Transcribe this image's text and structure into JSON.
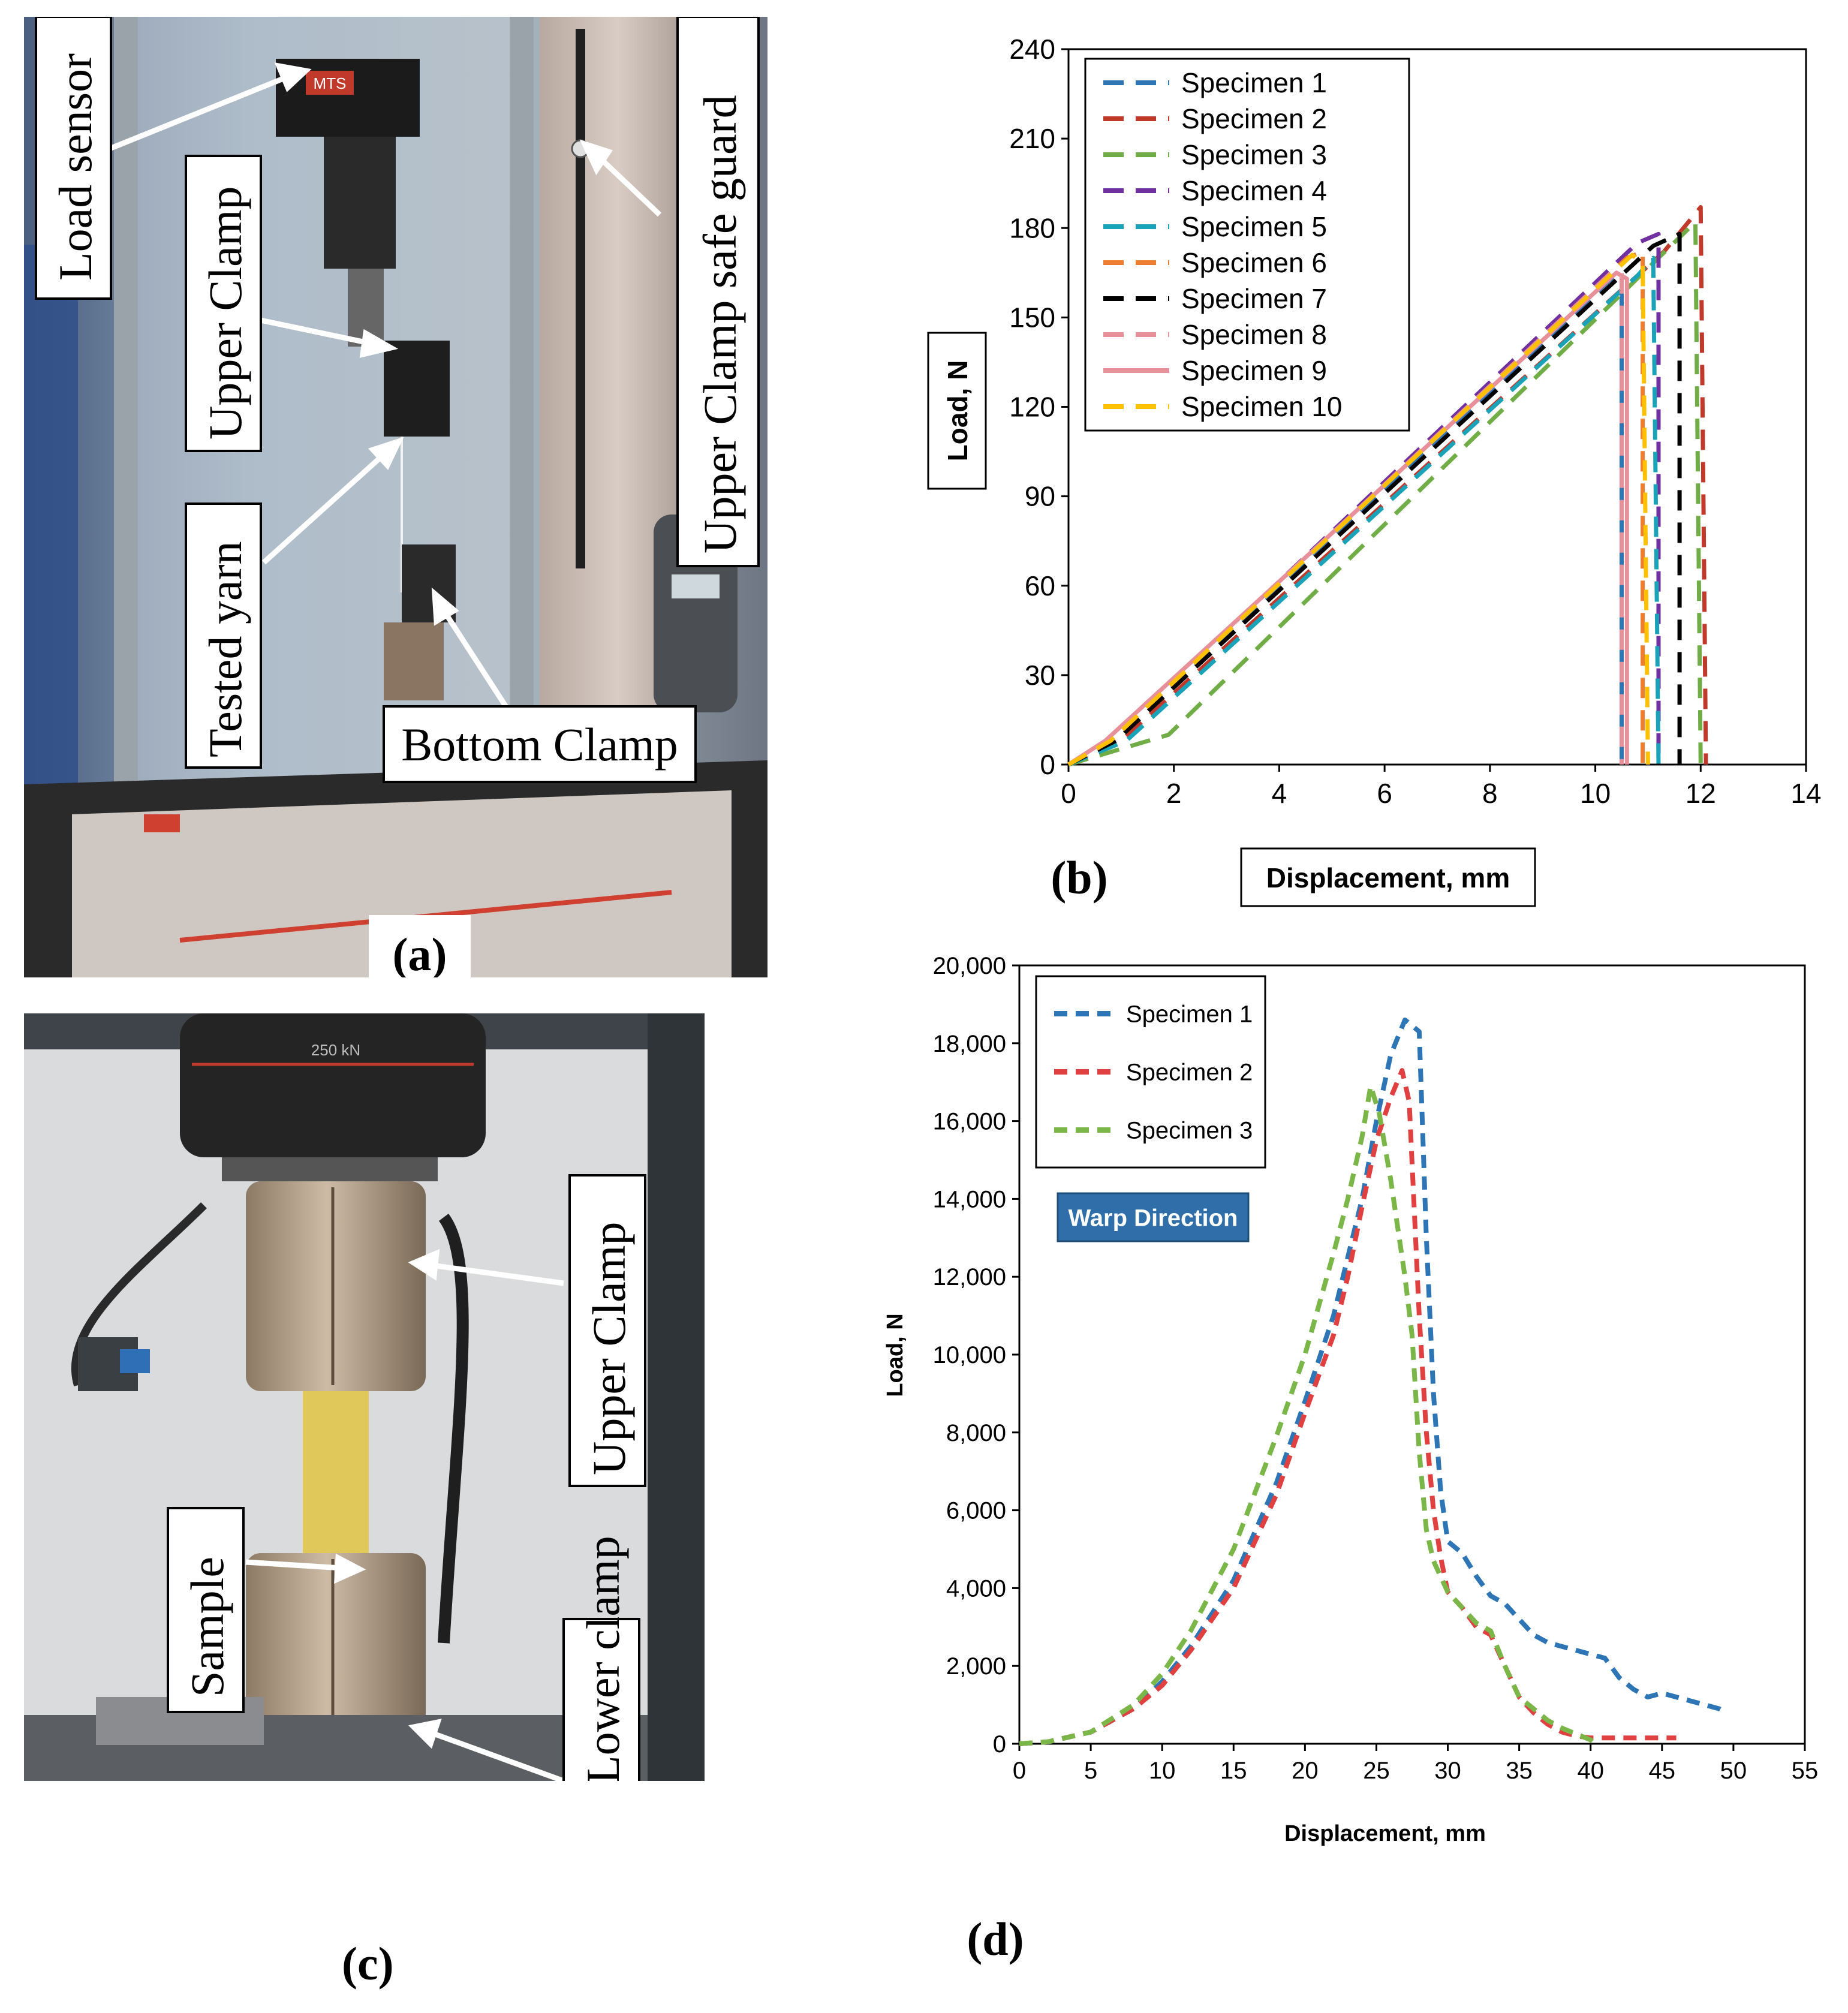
{
  "panel_a": {
    "caption": "(a)",
    "labels": {
      "load_sensor": "Load sensor",
      "upper_clamp": "Upper Clamp",
      "tested_yarn": "Tested yarn",
      "bottom_clamp": "Bottom Clamp",
      "safe_guard": "Upper Clamp safe guard"
    },
    "machine_brand": "MTS"
  },
  "panel_c": {
    "caption": "(c)",
    "labels": {
      "upper_clamp": "Upper Clamp",
      "sample": "Sample",
      "lower_clamp": "Lower clamp"
    },
    "load_cell_text": "250 kN"
  },
  "chart_data": [
    {
      "panel": "(b)",
      "type": "line",
      "xlabel": "Displacement, mm",
      "ylabel": "Load, N",
      "xlim": [
        0,
        14
      ],
      "ylim": [
        0,
        240
      ],
      "xticks": [
        "0",
        "2",
        "4",
        "6",
        "8",
        "10",
        "12",
        "14"
      ],
      "yticks": [
        "0",
        "30",
        "60",
        "90",
        "120",
        "150",
        "180",
        "210",
        "240"
      ],
      "grid": false,
      "legend_position": "top-left",
      "series": [
        {
          "name": "Specimen 1",
          "color": "#2e75b6",
          "dash": "dashed",
          "points": [
            [
              0,
              0
            ],
            [
              0.9,
              8
            ],
            [
              10.3,
              163
            ],
            [
              10.5,
              160
            ],
            [
              10.5,
              0
            ]
          ]
        },
        {
          "name": "Specimen 2",
          "color": "#c0392b",
          "dash": "dashed",
          "points": [
            [
              0,
              0
            ],
            [
              1.0,
              8
            ],
            [
              11.3,
              172
            ],
            [
              12.0,
              187
            ],
            [
              12.1,
              0
            ]
          ]
        },
        {
          "name": "Specimen 3",
          "color": "#70ad47",
          "dash": "dashed",
          "points": [
            [
              0,
              0
            ],
            [
              1.9,
              10
            ],
            [
              11.2,
              170
            ],
            [
              11.9,
              182
            ],
            [
              12.0,
              0
            ]
          ]
        },
        {
          "name": "Specimen 4",
          "color": "#7030a0",
          "dash": "dashed",
          "points": [
            [
              0,
              0
            ],
            [
              0.8,
              8
            ],
            [
              10.8,
              175
            ],
            [
              11.2,
              178
            ],
            [
              11.2,
              0
            ]
          ]
        },
        {
          "name": "Specimen 5",
          "color": "#1aa3b8",
          "dash": "dashed",
          "points": [
            [
              0,
              0
            ],
            [
              1.1,
              8
            ],
            [
              10.8,
              164
            ],
            [
              11.1,
              170
            ],
            [
              11.2,
              0
            ]
          ]
        },
        {
          "name": "Specimen 6",
          "color": "#ed7d31",
          "dash": "dashed",
          "points": [
            [
              0,
              0
            ],
            [
              0.8,
              8
            ],
            [
              10.6,
              170
            ],
            [
              10.9,
              172
            ],
            [
              10.9,
              0
            ]
          ]
        },
        {
          "name": "Specimen 7",
          "color": "#000000",
          "dash": "dashed",
          "points": [
            [
              0,
              0
            ],
            [
              0.9,
              8
            ],
            [
              11.1,
              174
            ],
            [
              11.6,
              178
            ],
            [
              11.6,
              0
            ]
          ]
        },
        {
          "name": "Specimen 8",
          "color": "#e8909a",
          "dash": "dashed",
          "points": [
            [
              0,
              0
            ],
            [
              0.8,
              8
            ],
            [
              10.3,
              165
            ],
            [
              10.5,
              165
            ],
            [
              10.5,
              0
            ]
          ]
        },
        {
          "name": "Specimen 9",
          "color": "#e8909a",
          "dash": "solid",
          "points": [
            [
              0,
              0
            ],
            [
              0.7,
              8
            ],
            [
              10.4,
              165
            ],
            [
              10.6,
              163
            ],
            [
              10.6,
              0
            ]
          ]
        },
        {
          "name": "Specimen 10",
          "color": "#ffc000",
          "dash": "dashed",
          "points": [
            [
              0,
              0
            ],
            [
              0.8,
              8
            ],
            [
              10.7,
              171
            ],
            [
              10.9,
              168
            ],
            [
              11.0,
              0
            ]
          ]
        }
      ]
    },
    {
      "panel": "(d)",
      "type": "line",
      "xlabel": "Displacement, mm",
      "ylabel": "Load, N",
      "xlim": [
        0,
        55
      ],
      "ylim": [
        0,
        20000
      ],
      "xticks": [
        "0",
        "5",
        "10",
        "15",
        "20",
        "25",
        "30",
        "35",
        "40",
        "45",
        "50",
        "55"
      ],
      "yticks": [
        "0",
        "2,000",
        "4,000",
        "6,000",
        "8,000",
        "10,000",
        "12,000",
        "14,000",
        "16,000",
        "18,000",
        "20,000"
      ],
      "grid": false,
      "legend_position": "top-left",
      "annotation": "Warp Direction",
      "series": [
        {
          "name": "Specimen 1",
          "color": "#2e75b6",
          "dash": "dashed",
          "points": [
            [
              0,
              0
            ],
            [
              2,
              50
            ],
            [
              5,
              300
            ],
            [
              8,
              900
            ],
            [
              10,
              1600
            ],
            [
              12,
              2500
            ],
            [
              15,
              4200
            ],
            [
              18,
              6700
            ],
            [
              20,
              8800
            ],
            [
              22,
              11000
            ],
            [
              24,
              14000
            ],
            [
              25,
              16000
            ],
            [
              26,
              17700
            ],
            [
              27,
              18600
            ],
            [
              28,
              18300
            ],
            [
              28.5,
              13000
            ],
            [
              29,
              9000
            ],
            [
              29.5,
              6500
            ],
            [
              30,
              5200
            ],
            [
              31,
              4900
            ],
            [
              32,
              4300
            ],
            [
              33,
              3800
            ],
            [
              34,
              3600
            ],
            [
              35,
              3200
            ],
            [
              36,
              2800
            ],
            [
              37,
              2600
            ],
            [
              38,
              2500
            ],
            [
              40,
              2300
            ],
            [
              41,
              2200
            ],
            [
              42,
              1700
            ],
            [
              43,
              1400
            ],
            [
              44,
              1200
            ],
            [
              45,
              1300
            ],
            [
              46,
              1200
            ],
            [
              47,
              1100
            ],
            [
              48,
              1000
            ],
            [
              49,
              900
            ],
            [
              49.5,
              800
            ]
          ]
        },
        {
          "name": "Specimen 2",
          "color": "#e04040",
          "dash": "dashed",
          "points": [
            [
              0,
              0
            ],
            [
              2,
              50
            ],
            [
              5,
              300
            ],
            [
              8,
              900
            ],
            [
              10,
              1500
            ],
            [
              12,
              2400
            ],
            [
              15,
              4000
            ],
            [
              18,
              6400
            ],
            [
              20,
              8500
            ],
            [
              22,
              10500
            ],
            [
              23,
              12000
            ],
            [
              24,
              13800
            ],
            [
              25,
              15500
            ],
            [
              26,
              16600
            ],
            [
              26.8,
              17300
            ],
            [
              27.3,
              16500
            ],
            [
              28,
              11000
            ],
            [
              28.5,
              8000
            ],
            [
              29,
              6000
            ],
            [
              29.5,
              4800
            ],
            [
              30,
              3900
            ],
            [
              31,
              3500
            ],
            [
              32,
              3000
            ],
            [
              33,
              2800
            ],
            [
              34,
              2000
            ],
            [
              35,
              1200
            ],
            [
              36,
              800
            ],
            [
              37,
              500
            ],
            [
              38,
              300
            ],
            [
              39,
              200
            ],
            [
              40,
              150
            ],
            [
              42,
              150
            ],
            [
              44,
              150
            ],
            [
              46,
              150
            ]
          ]
        },
        {
          "name": "Specimen 3",
          "color": "#7ab648",
          "dash": "dashed",
          "points": [
            [
              0,
              0
            ],
            [
              2,
              50
            ],
            [
              5,
              300
            ],
            [
              8,
              1000
            ],
            [
              10,
              1800
            ],
            [
              12,
              2900
            ],
            [
              15,
              5000
            ],
            [
              18,
              7900
            ],
            [
              20,
              10000
            ],
            [
              22,
              12600
            ],
            [
              23,
              14000
            ],
            [
              24,
              15600
            ],
            [
              24.6,
              16900
            ],
            [
              25.2,
              16200
            ],
            [
              26,
              14500
            ],
            [
              27,
              12000
            ],
            [
              27.5,
              10500
            ],
            [
              28,
              7500
            ],
            [
              28.5,
              5500
            ],
            [
              29,
              4700
            ],
            [
              30,
              3900
            ],
            [
              31,
              3500
            ],
            [
              32,
              3100
            ],
            [
              33,
              2900
            ],
            [
              34,
              2000
            ],
            [
              35,
              1200
            ],
            [
              36,
              900
            ],
            [
              37,
              600
            ],
            [
              38,
              400
            ],
            [
              39,
              250
            ],
            [
              40,
              100
            ],
            [
              40.3,
              0
            ]
          ]
        }
      ]
    }
  ],
  "chart_b_caption": "(b)",
  "chart_d_caption": "(d)"
}
